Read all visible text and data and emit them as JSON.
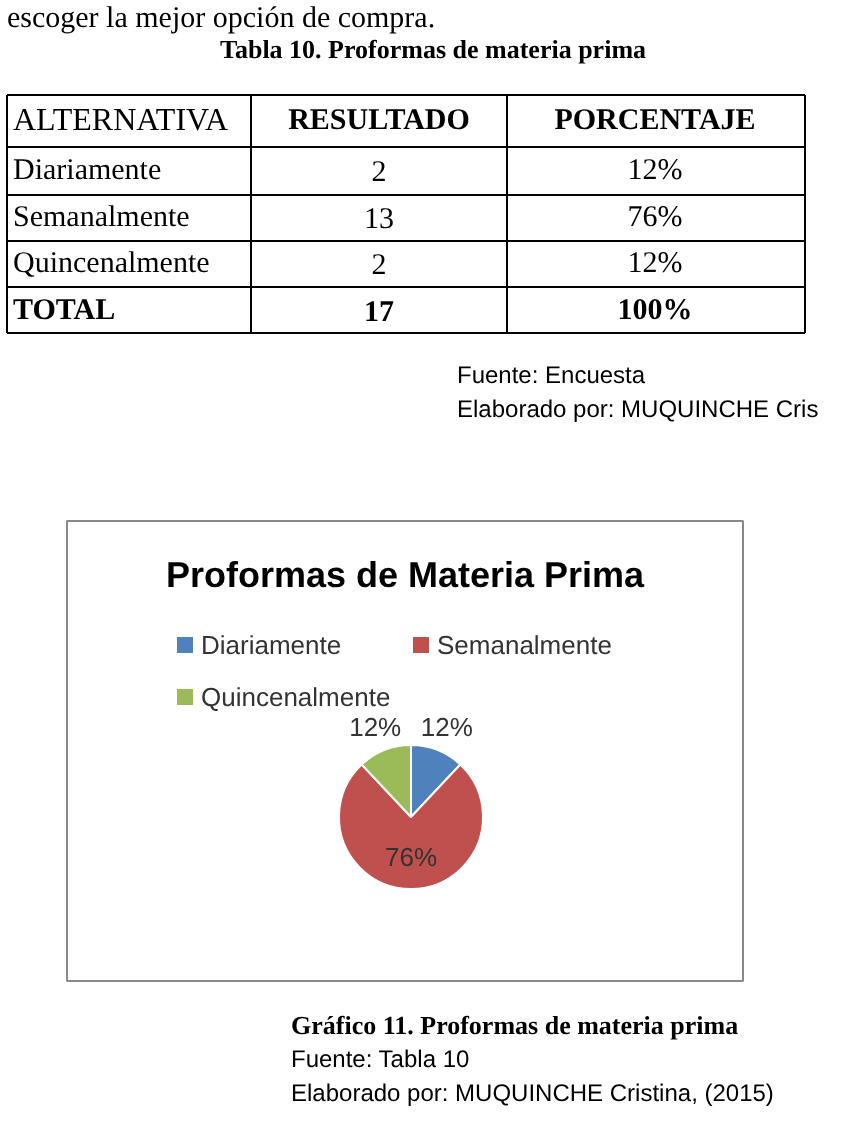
{
  "chart_data": {
    "type": "pie",
    "title": "Proformas de Materia Prima",
    "categories": [
      "Diariamente",
      "Semanalmente",
      "Quincenalmente"
    ],
    "values": [
      12,
      76,
      12
    ],
    "value_labels": [
      "12%",
      "76%",
      "12%"
    ],
    "colors": [
      "#4f81bd",
      "#c0504d",
      "#9bbb59"
    ],
    "legend": "top",
    "annotations": [
      "escoger la mejor opción de compra.",
      "Tabla 10. Proformas de materia prima",
      "ALTERNATIVA",
      "RESULTADO",
      "PORCENTAJE",
      "TOTAL",
      "17",
      "100%",
      "Fuente: Encuesta",
      "Elaborado por: MUQUINCHE Cris",
      "Gráfico 11. Proformas de materia prima",
      "Fuente: Tabla 10",
      "Elaborado por: MUQUINCHE Cristina, (2015)",
      "2",
      "13",
      "2"
    ]
  }
}
